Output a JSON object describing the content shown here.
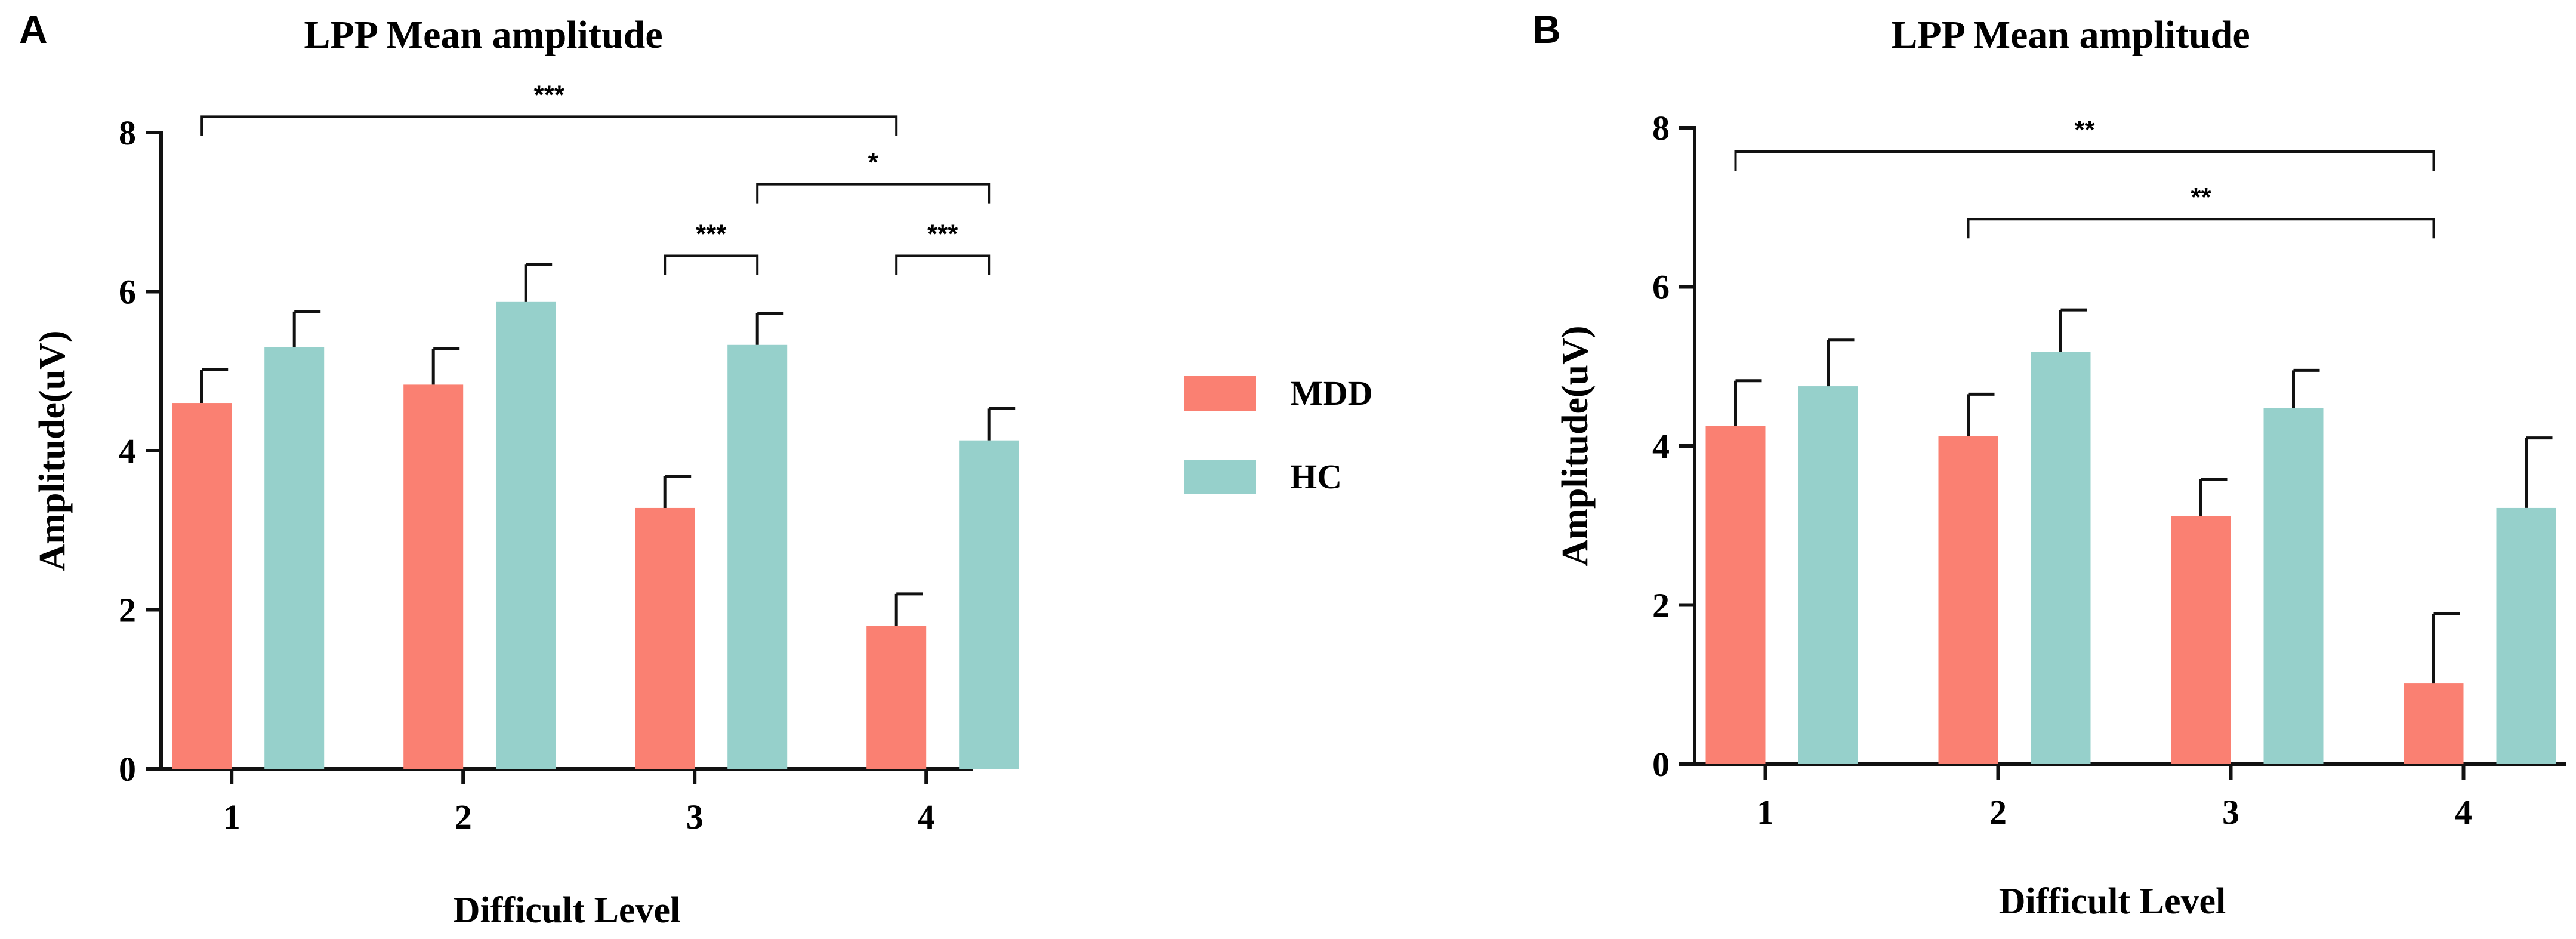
{
  "panel_labels": [
    "A",
    "B"
  ],
  "legend": [
    {
      "label": "MDD",
      "color": "#FA8072"
    },
    {
      "label": "HC",
      "color": "#96D0CB"
    }
  ],
  "chart_data": [
    {
      "type": "bar",
      "panel": "A",
      "title": "LPP Mean amplitude",
      "xlabel": "Difficult Level",
      "ylabel": "Amplitude(uV)",
      "categories": [
        "1",
        "2",
        "3",
        "4"
      ],
      "ylim": [
        0,
        8
      ],
      "yticks": [
        "0",
        "2",
        "4",
        "6",
        "8"
      ],
      "series": [
        {
          "name": "MDD",
          "values": [
            4.6,
            4.83,
            3.28,
            1.8
          ],
          "errors": [
            0.42,
            0.45,
            0.4,
            0.4
          ]
        },
        {
          "name": "HC",
          "values": [
            5.3,
            5.87,
            5.33,
            4.13
          ],
          "errors": [
            0.45,
            0.47,
            0.4,
            0.4
          ]
        }
      ],
      "significance": [
        {
          "label": "***",
          "from": {
            "category": 0,
            "series": 0
          },
          "to": {
            "category": 3,
            "series": 0
          },
          "level": 8.2
        },
        {
          "label": "*",
          "from": {
            "category": 2,
            "series": 1
          },
          "to": {
            "category": 3,
            "series": 1
          },
          "level": 7.35
        },
        {
          "label": "***",
          "from": {
            "category": 2,
            "series": 0
          },
          "to": {
            "category": 2,
            "series": 1
          },
          "level": 6.45
        },
        {
          "label": "***",
          "from": {
            "category": 3,
            "series": 0
          },
          "to": {
            "category": 3,
            "series": 1
          },
          "level": 6.45
        }
      ]
    },
    {
      "type": "bar",
      "panel": "B",
      "title": "LPP Mean amplitude",
      "xlabel": "Difficult Level",
      "ylabel": "Amplitude(uV)",
      "categories": [
        "1",
        "2",
        "3",
        "4"
      ],
      "ylim": [
        0,
        8
      ],
      "yticks": [
        "0",
        "2",
        "4",
        "6",
        "8"
      ],
      "series": [
        {
          "name": "MDD",
          "values": [
            4.25,
            4.12,
            3.12,
            1.02
          ],
          "errors": [
            0.57,
            0.53,
            0.46,
            0.87
          ]
        },
        {
          "name": "HC",
          "values": [
            4.75,
            5.18,
            4.48,
            3.22
          ],
          "errors": [
            0.58,
            0.53,
            0.47,
            0.88
          ]
        }
      ],
      "significance": [
        {
          "label": "**",
          "from": {
            "category": 0,
            "series": 0
          },
          "to": {
            "category": 3,
            "series": 0
          },
          "level": 7.7
        },
        {
          "label": "**",
          "from": {
            "category": 1,
            "series": 0
          },
          "to": {
            "category": 3,
            "series": 0
          },
          "level": 6.85
        }
      ]
    }
  ]
}
